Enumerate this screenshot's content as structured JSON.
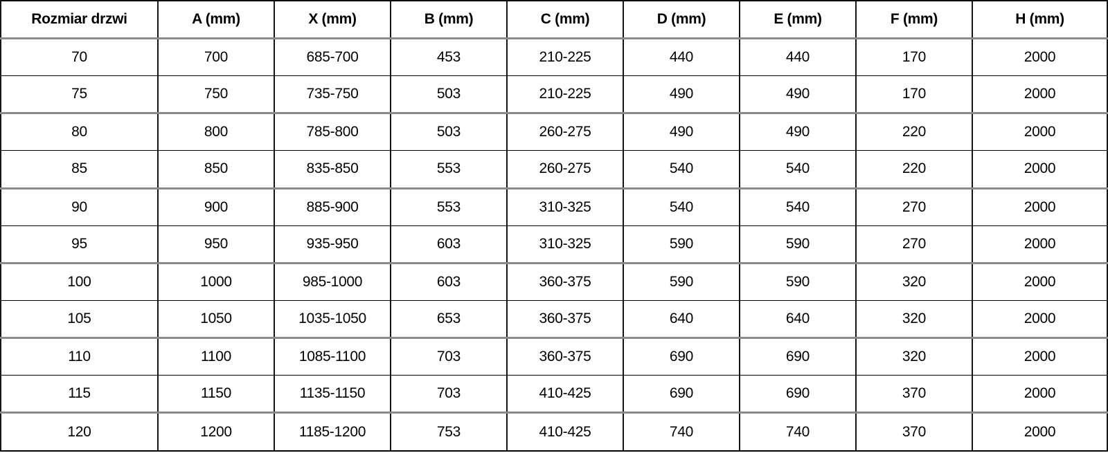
{
  "table": {
    "columns": [
      "Rozmiar drzwi",
      "A (mm)",
      "X (mm)",
      "B (mm)",
      "C (mm)",
      "D (mm)",
      "E (mm)",
      "F (mm)",
      "H (mm)"
    ],
    "rows": [
      [
        "70",
        "700",
        "685-700",
        "453",
        "210-225",
        "440",
        "440",
        "170",
        "2000"
      ],
      [
        "75",
        "750",
        "735-750",
        "503",
        "210-225",
        "490",
        "490",
        "170",
        "2000"
      ],
      [
        "80",
        "800",
        "785-800",
        "503",
        "260-275",
        "490",
        "490",
        "220",
        "2000"
      ],
      [
        "85",
        "850",
        "835-850",
        "553",
        "260-275",
        "540",
        "540",
        "220",
        "2000"
      ],
      [
        "90",
        "900",
        "885-900",
        "553",
        "310-325",
        "540",
        "540",
        "270",
        "2000"
      ],
      [
        "95",
        "950",
        "935-950",
        "603",
        "310-325",
        "590",
        "590",
        "270",
        "2000"
      ],
      [
        "100",
        "1000",
        "985-1000",
        "603",
        "360-375",
        "590",
        "590",
        "320",
        "2000"
      ],
      [
        "105",
        "1050",
        "1035-1050",
        "653",
        "360-375",
        "640",
        "640",
        "320",
        "2000"
      ],
      [
        "110",
        "1100",
        "1085-1100",
        "703",
        "360-375",
        "690",
        "690",
        "320",
        "2000"
      ],
      [
        "115",
        "1150",
        "1135-1150",
        "703",
        "410-425",
        "690",
        "690",
        "370",
        "2000"
      ],
      [
        "120",
        "1200",
        "1185-1200",
        "753",
        "410-425",
        "740",
        "740",
        "370",
        "2000"
      ]
    ],
    "colors": {
      "border_black": "#000000",
      "border_gray": "#8a8a8a",
      "text": "#000000",
      "background": "#ffffff"
    }
  }
}
